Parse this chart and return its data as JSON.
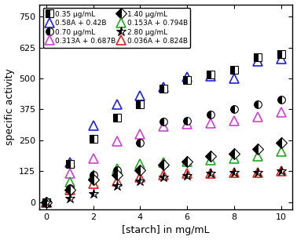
{
  "title": "",
  "xlabel": "[starch] in mg/mL",
  "ylabel": "specific activity",
  "xlim": [
    -0.3,
    10.5
  ],
  "ylim": [
    -30,
    800
  ],
  "yticks": [
    0,
    125,
    250,
    375,
    500,
    625,
    750
  ],
  "xticks": [
    0,
    2,
    4,
    6,
    8,
    10
  ],
  "background_color": "#ffffff",
  "x": [
    0,
    1,
    2,
    3,
    4,
    5,
    6,
    7,
    8,
    9,
    10
  ],
  "series": [
    {
      "label": "0.35 μg/mL",
      "y": [
        0,
        155,
        255,
        340,
        395,
        460,
        495,
        515,
        535,
        585,
        600
      ],
      "color": "black",
      "marker": "s",
      "fillstyle": "left",
      "markersize": 7,
      "is_exp": true
    },
    {
      "label": "0.58A + 0.42B",
      "y": [
        0,
        160,
        310,
        395,
        430,
        465,
        505,
        510,
        500,
        570,
        580
      ],
      "color": "#2020dd",
      "marker": "^",
      "fillstyle": "none",
      "markersize": 8,
      "is_exp": false
    },
    {
      "label": "0.70 μg/mL",
      "y": [
        0,
        55,
        110,
        130,
        240,
        325,
        330,
        355,
        375,
        395,
        415
      ],
      "color": "black",
      "marker": "o",
      "fillstyle": "left",
      "markersize": 7,
      "is_exp": true
    },
    {
      "label": "0.313A + 0.687B",
      "y": [
        0,
        115,
        175,
        245,
        275,
        305,
        315,
        320,
        330,
        345,
        365
      ],
      "color": "#cc44cc",
      "marker": "^",
      "fillstyle": "none",
      "markersize": 8,
      "is_exp": false
    },
    {
      "label": "1.40 μg/mL",
      "y": [
        0,
        50,
        90,
        110,
        130,
        150,
        165,
        185,
        195,
        215,
        240
      ],
      "color": "black",
      "marker": "D",
      "fillstyle": "left",
      "markersize": 7,
      "is_exp": true
    },
    {
      "label": "0.153A + 0.794B",
      "y": [
        0,
        80,
        110,
        135,
        155,
        160,
        165,
        170,
        175,
        185,
        205
      ],
      "color": "#22aa22",
      "marker": "^",
      "fillstyle": "none",
      "markersize": 8,
      "is_exp": false
    },
    {
      "label": "2.80 μg/mL",
      "y": [
        0,
        15,
        35,
        65,
        85,
        100,
        105,
        115,
        120,
        120,
        125
      ],
      "color": "black",
      "marker": "*",
      "fillstyle": "left",
      "markersize": 9,
      "is_exp": true
    },
    {
      "label": "0.036A + 0.824B",
      "y": [
        0,
        50,
        75,
        85,
        100,
        110,
        115,
        115,
        120,
        120,
        125
      ],
      "color": "#dd2222",
      "marker": "^",
      "fillstyle": "none",
      "markersize": 8,
      "is_exp": false
    }
  ]
}
